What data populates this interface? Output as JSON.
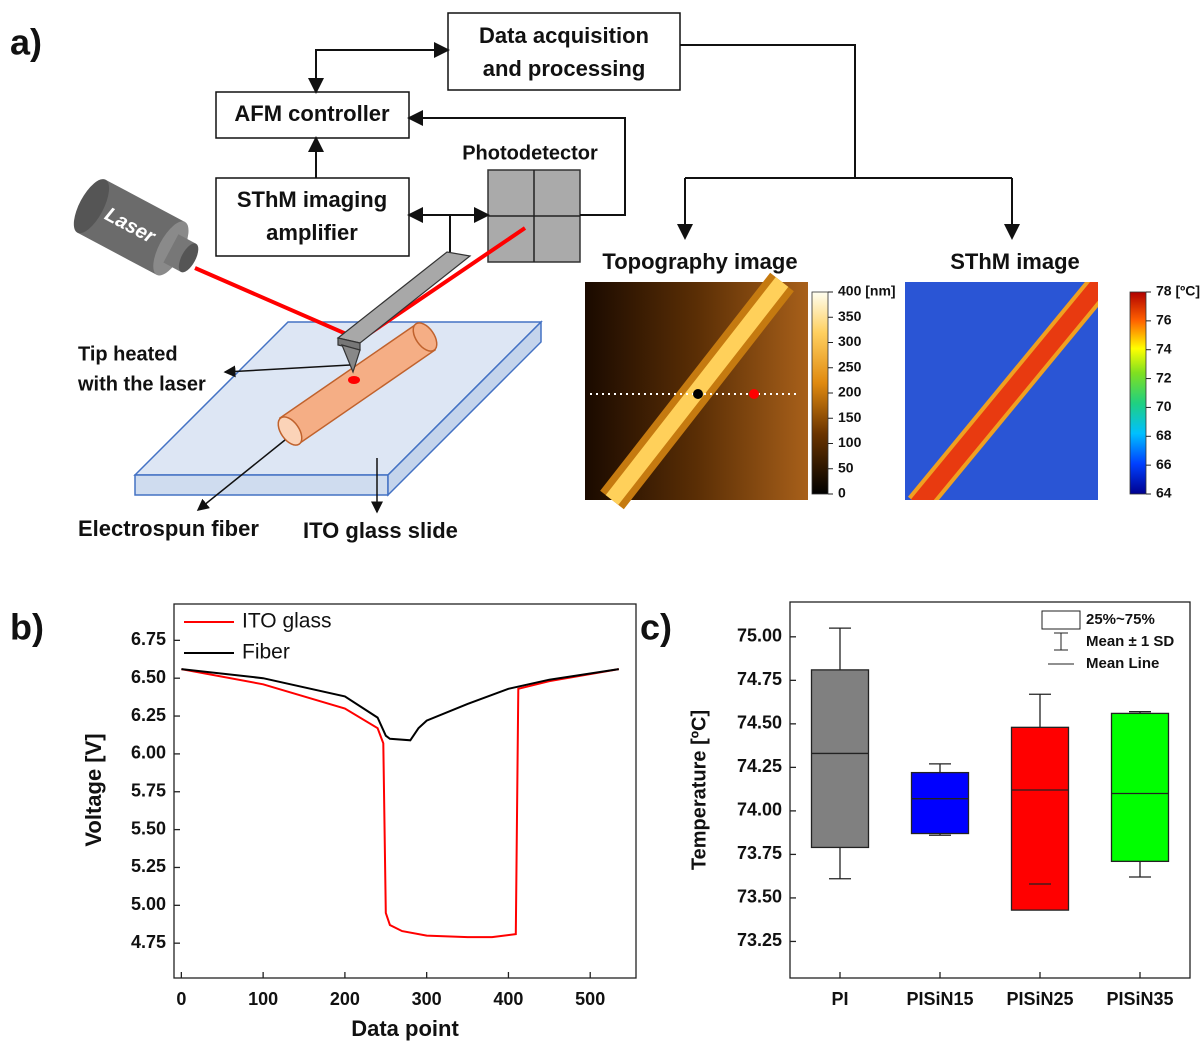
{
  "panel_a": {
    "label": "a)",
    "data_acquisition": [
      "Data acquisition",
      "and processing"
    ],
    "afm_controller": "AFM controller",
    "amplifier": [
      "SThM imaging",
      "amplifier"
    ],
    "photodetector": "Photodetector",
    "laser": "Laser",
    "tip_heated": [
      "Tip heated",
      "with the laser"
    ],
    "fiber": "Electrospun fiber",
    "ito_slide": "ITO glass slide",
    "topography": {
      "title": "Topography image",
      "lim": [
        0,
        400
      ],
      "ticks": [
        0,
        50,
        100,
        150,
        200,
        250,
        300,
        350,
        {
          "value": 400,
          "label": "400 [nm]"
        }
      ]
    },
    "sthm": {
      "title": "SThM image",
      "lim": [
        64,
        78
      ],
      "ticks": [
        64,
        66,
        68,
        70,
        72,
        74,
        76,
        {
          "value": 78,
          "label": "78 [ºC]"
        }
      ]
    }
  },
  "panel_b": {
    "label": "b)"
  },
  "panel_c": {
    "label": "c)"
  },
  "chart_data": [
    {
      "type": "line",
      "x_label": "Data point",
      "y_label": "Voltage [V]",
      "xlim": [
        -9,
        556
      ],
      "xticks": [
        0,
        100,
        200,
        300,
        400,
        500
      ],
      "ylim": [
        4.52,
        6.99
      ],
      "yticks": [
        4.75,
        {
          "value": 5,
          "label": "5.00"
        },
        5.25,
        {
          "value": 5.5,
          "label": "5.50"
        },
        5.75,
        {
          "value": 6,
          "label": "6.00"
        },
        6.25,
        {
          "value": 6.5,
          "label": "6.50"
        },
        6.75
      ],
      "legend": "upper left",
      "series": [
        {
          "name": "ITO glass",
          "color": "#ff0000",
          "x": [
            0,
            100,
            200,
            240,
            247,
            250,
            255,
            270,
            300,
            350,
            380,
            409,
            412,
            450,
            535
          ],
          "values": [
            6.56,
            6.46,
            6.3,
            6.17,
            6.07,
            4.95,
            4.87,
            4.83,
            4.8,
            4.79,
            4.79,
            4.81,
            6.43,
            6.48,
            6.56
          ]
        },
        {
          "name": "Fiber",
          "color": "#000000",
          "x": [
            0,
            100,
            200,
            240,
            250,
            255,
            280,
            290,
            300,
            350,
            400,
            450,
            535
          ],
          "values": [
            6.56,
            6.5,
            6.38,
            6.24,
            6.12,
            6.1,
            6.09,
            6.17,
            6.22,
            6.33,
            6.43,
            6.49,
            6.56
          ]
        }
      ]
    },
    {
      "type": "box",
      "y_label": "Temperature [ºC]",
      "categories": [
        "PI",
        "PISiN15",
        "PISiN25",
        "PISiN35"
      ],
      "colors": [
        "#808080",
        "#0000ff",
        "#ff0000",
        "#00ff00"
      ],
      "ylim": [
        73.04,
        75.2
      ],
      "yticks": [
        73.25,
        {
          "value": 73.5,
          "label": "73.50"
        },
        73.75,
        {
          "value": 74,
          "label": "74.00"
        },
        74.25,
        {
          "value": 74.5,
          "label": "74.50"
        },
        74.75,
        {
          "value": 75,
          "label": "75.00"
        }
      ],
      "box_low": [
        73.79,
        73.87,
        73.43,
        73.71
      ],
      "box_high": [
        74.81,
        74.22,
        74.48,
        74.56
      ],
      "mean": [
        74.33,
        74.07,
        74.12,
        74.1
      ],
      "sd_low": [
        73.61,
        73.86,
        73.58,
        73.62
      ],
      "sd_high": [
        75.05,
        74.27,
        74.67,
        74.57
      ],
      "legend": "upper right",
      "legend_labels": [
        "25%~75%",
        "Mean ± 1 SD",
        "Mean Line"
      ]
    }
  ]
}
